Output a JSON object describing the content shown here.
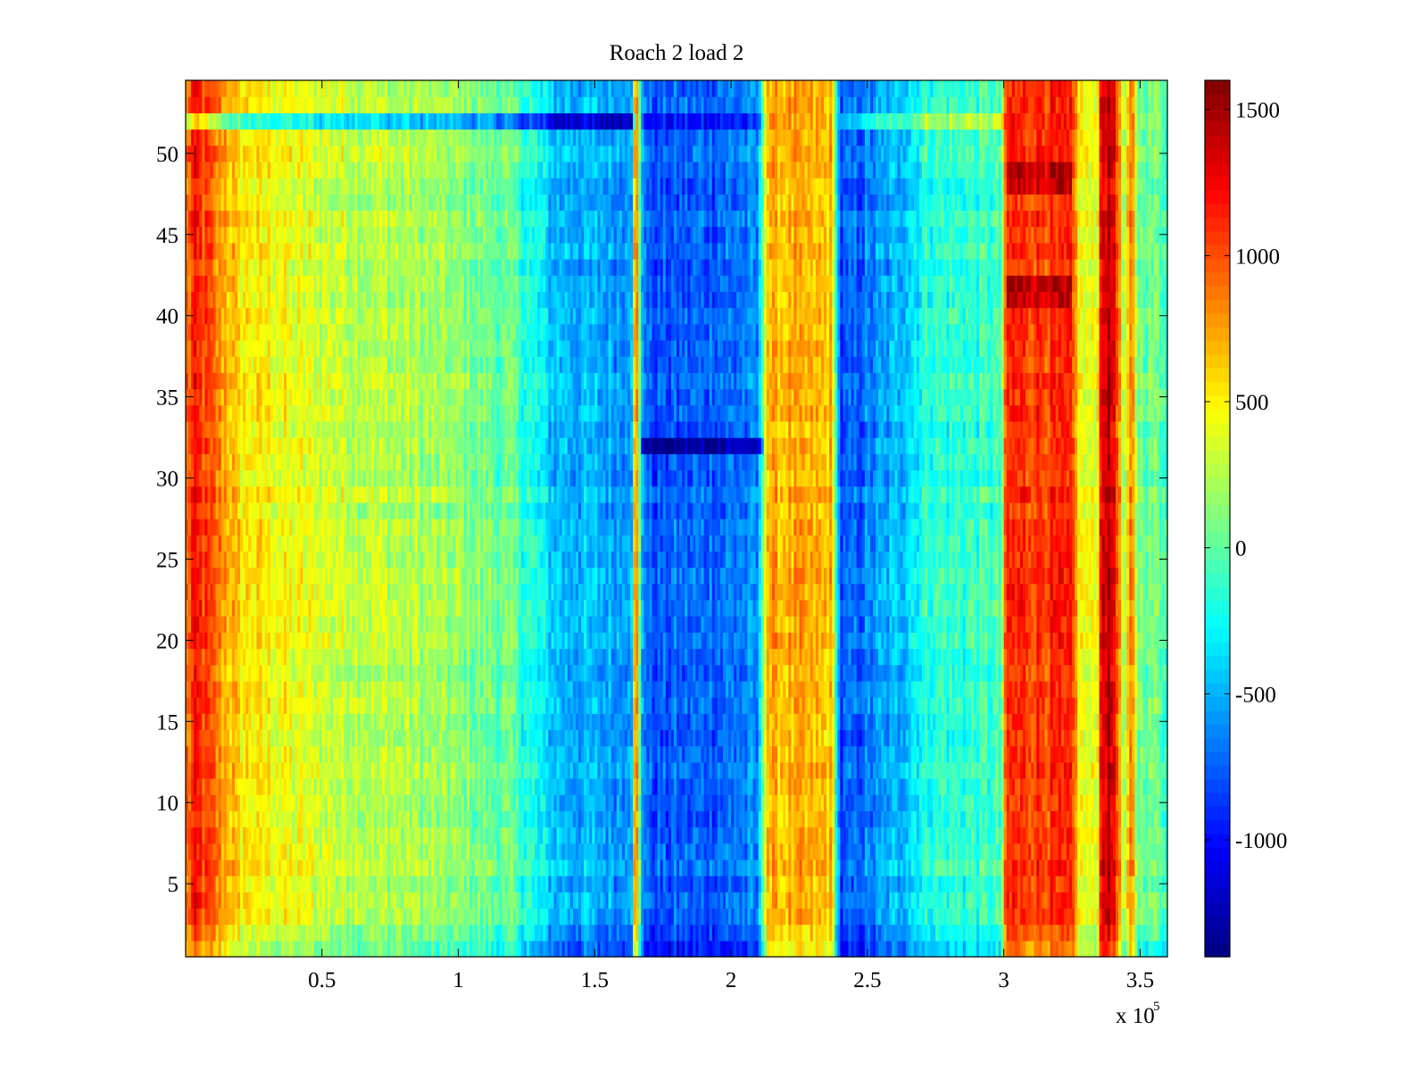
{
  "chart_data": {
    "type": "heatmap",
    "title": "Roach 2 load 2",
    "xlabel": "",
    "ylabel": "",
    "colormap": "jet",
    "x_multiplier_label": "x 10",
    "x_multiplier_exponent": "5",
    "xlim": [
      0,
      360000
    ],
    "ylim": [
      0.5,
      54.5
    ],
    "n_rows": 54,
    "x_ticks": [
      {
        "value": 50000,
        "label": "0.5"
      },
      {
        "value": 100000,
        "label": "1"
      },
      {
        "value": 150000,
        "label": "1.5"
      },
      {
        "value": 200000,
        "label": "2"
      },
      {
        "value": 250000,
        "label": "2.5"
      },
      {
        "value": 300000,
        "label": "3"
      },
      {
        "value": 350000,
        "label": "3.5"
      }
    ],
    "y_ticks": [
      {
        "value": 5,
        "label": "5"
      },
      {
        "value": 10,
        "label": "10"
      },
      {
        "value": 15,
        "label": "15"
      },
      {
        "value": 20,
        "label": "20"
      },
      {
        "value": 25,
        "label": "25"
      },
      {
        "value": 30,
        "label": "30"
      },
      {
        "value": 35,
        "label": "35"
      },
      {
        "value": 40,
        "label": "40"
      },
      {
        "value": 45,
        "label": "45"
      },
      {
        "value": 50,
        "label": "50"
      }
    ],
    "colorbar": {
      "clim": [
        -1400,
        1600
      ],
      "ticks": [
        {
          "value": 1500,
          "label": "1500"
        },
        {
          "value": 1000,
          "label": "1000"
        },
        {
          "value": 500,
          "label": "500"
        },
        {
          "value": 0,
          "label": "0"
        },
        {
          "value": -500,
          "label": "-500"
        },
        {
          "value": -1000,
          "label": "-1000"
        }
      ]
    },
    "column_profile": [
      {
        "x": 0,
        "value": 800
      },
      {
        "x": 3000,
        "value": 1150
      },
      {
        "x": 9000,
        "value": 950
      },
      {
        "x": 20000,
        "value": 550
      },
      {
        "x": 50000,
        "value": 350
      },
      {
        "x": 90000,
        "value": 200
      },
      {
        "x": 120000,
        "value": 0
      },
      {
        "x": 135000,
        "value": -450
      },
      {
        "x": 160000,
        "value": -550
      },
      {
        "x": 163500,
        "value": -400
      },
      {
        "x": 165000,
        "value": 1100
      },
      {
        "x": 167000,
        "value": -400
      },
      {
        "x": 170000,
        "value": -800
      },
      {
        "x": 210000,
        "value": -650
      },
      {
        "x": 213000,
        "value": 700
      },
      {
        "x": 237000,
        "value": 650
      },
      {
        "x": 240000,
        "value": -850
      },
      {
        "x": 262000,
        "value": -450
      },
      {
        "x": 272000,
        "value": -150
      },
      {
        "x": 299000,
        "value": -100
      },
      {
        "x": 301000,
        "value": 1100
      },
      {
        "x": 325000,
        "value": 1050
      },
      {
        "x": 328000,
        "value": 450
      },
      {
        "x": 334000,
        "value": 350
      },
      {
        "x": 336000,
        "value": 1450
      },
      {
        "x": 341000,
        "value": 1300
      },
      {
        "x": 344000,
        "value": 100
      },
      {
        "x": 347000,
        "value": 900
      },
      {
        "x": 349000,
        "value": 100
      },
      {
        "x": 360000,
        "value": 0
      }
    ],
    "row_effects": [
      {
        "row": 52,
        "x_from": 0,
        "x_to": 8000,
        "delta": -600
      },
      {
        "row": 52,
        "x_from": 8000,
        "x_to": 165000,
        "delta": -700
      },
      {
        "row": 52,
        "x_from": 167000,
        "x_to": 213000,
        "delta": -300
      },
      {
        "row": 52,
        "x_from": 240000,
        "x_to": 300000,
        "delta": 300
      },
      {
        "row": 32,
        "x_from": 167000,
        "x_to": 212000,
        "delta": -600
      },
      {
        "row": 41,
        "x_from": 301000,
        "x_to": 325000,
        "delta": 350
      },
      {
        "row": 42,
        "x_from": 301000,
        "x_to": 325000,
        "delta": 350
      },
      {
        "row": 48,
        "x_from": 301000,
        "x_to": 325000,
        "delta": 350
      },
      {
        "row": 49,
        "x_from": 301000,
        "x_to": 325000,
        "delta": 350
      },
      {
        "row": 1,
        "x_from": 0,
        "x_to": 360000,
        "delta": -250
      },
      {
        "row": 2,
        "x_from": 0,
        "x_to": 360000,
        "delta": -150
      }
    ],
    "noise_amplitude": 300,
    "n_columns": 360
  }
}
